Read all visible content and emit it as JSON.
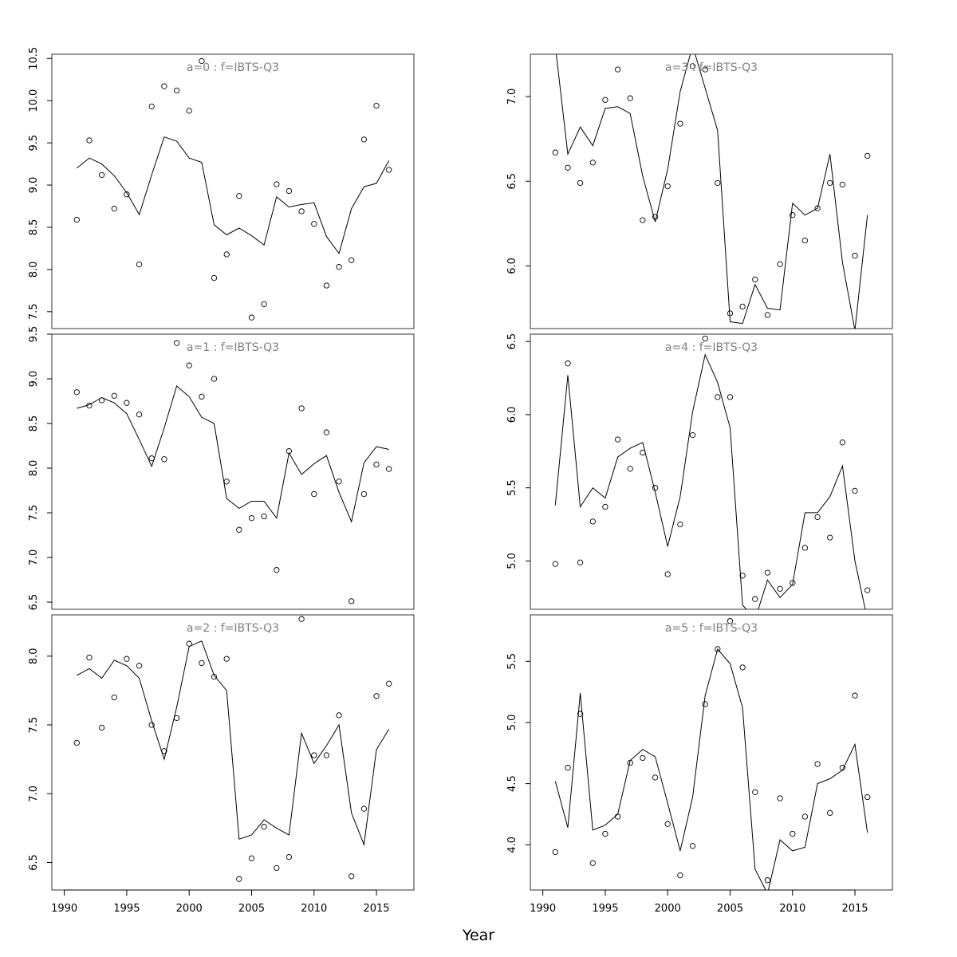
{
  "xlabel": "Year",
  "chart_data": [
    {
      "type": "scatter",
      "title": "a=0  :  f=IBTS-Q3",
      "xlim": [
        1989,
        2018
      ],
      "ylim": [
        7.3,
        10.55
      ],
      "xticks": [
        1990,
        1995,
        2000,
        2005,
        2010,
        2015
      ],
      "yticks": [
        7.5,
        8.0,
        8.5,
        9.0,
        9.5,
        10.0,
        10.5
      ],
      "show_xaxis": false,
      "series": [
        {
          "kind": "points",
          "x": [
            1991,
            1992,
            1993,
            1994,
            1995,
            1996,
            1997,
            1998,
            1999,
            2000,
            2001,
            2002,
            2003,
            2004,
            2005,
            2006,
            2007,
            2008,
            2009,
            2010,
            2011,
            2012,
            2013,
            2014,
            2015,
            2016
          ],
          "y": [
            8.59,
            9.53,
            9.12,
            8.72,
            8.89,
            8.06,
            9.93,
            10.17,
            10.12,
            9.88,
            10.47,
            7.9,
            8.18,
            8.87,
            7.43,
            7.59,
            9.01,
            8.93,
            8.69,
            8.54,
            7.81,
            8.03,
            8.11,
            9.54,
            9.94,
            9.18
          ]
        },
        {
          "kind": "line",
          "x": [
            1991,
            1992,
            1993,
            1994,
            1995,
            1996,
            1997,
            1998,
            1999,
            2000,
            2001,
            2002,
            2003,
            2004,
            2005,
            2006,
            2007,
            2008,
            2009,
            2010,
            2011,
            2012,
            2013,
            2014,
            2015,
            2016
          ],
          "y": [
            9.2,
            9.32,
            9.25,
            9.11,
            8.91,
            8.65,
            9.12,
            9.57,
            9.52,
            9.32,
            9.27,
            8.53,
            8.41,
            8.49,
            8.4,
            8.29,
            8.86,
            8.74,
            8.77,
            8.79,
            8.39,
            8.19,
            8.72,
            8.98,
            9.02,
            9.29
          ]
        }
      ]
    },
    {
      "type": "scatter",
      "title": "a=3  :  f=IBTS-Q3",
      "xlim": [
        1989,
        2018
      ],
      "ylim": [
        5.63,
        7.25
      ],
      "xticks": [
        1990,
        1995,
        2000,
        2005,
        2010,
        2015
      ],
      "yticks": [
        6.0,
        6.5,
        7.0
      ],
      "show_xaxis": false,
      "series": [
        {
          "kind": "points",
          "x": [
            1991,
            1992,
            1993,
            1994,
            1995,
            1996,
            1997,
            1998,
            1999,
            2000,
            2001,
            2002,
            2003,
            2004,
            2005,
            2006,
            2007,
            2008,
            2009,
            2010,
            2011,
            2012,
            2013,
            2014,
            2015,
            2016
          ],
          "y": [
            6.67,
            6.58,
            6.49,
            6.61,
            6.98,
            7.16,
            6.99,
            6.27,
            6.29,
            6.47,
            6.84,
            7.18,
            7.16,
            6.49,
            5.72,
            5.76,
            5.92,
            5.71,
            6.01,
            6.3,
            6.15,
            6.34,
            6.49,
            6.48,
            6.06,
            6.65
          ]
        },
        {
          "kind": "line",
          "x": [
            1991,
            1992,
            1993,
            1994,
            1995,
            1996,
            1997,
            1998,
            1999,
            2000,
            2001,
            2002,
            2003,
            2004,
            2005,
            2006,
            2007,
            2008,
            2009,
            2010,
            2011,
            2012,
            2013,
            2014,
            2015,
            2016
          ],
          "y": [
            7.3,
            6.66,
            6.82,
            6.71,
            6.93,
            6.94,
            6.9,
            6.53,
            6.26,
            6.57,
            7.03,
            7.3,
            7.05,
            6.8,
            5.67,
            5.66,
            5.89,
            5.75,
            5.74,
            6.37,
            6.3,
            6.34,
            6.66,
            6.02,
            5.62,
            6.3
          ]
        }
      ]
    },
    {
      "type": "scatter",
      "title": "a=1  :  f=IBTS-Q3",
      "xlim": [
        1989,
        2018
      ],
      "ylim": [
        6.42,
        9.5
      ],
      "xticks": [
        1990,
        1995,
        2000,
        2005,
        2010,
        2015
      ],
      "yticks": [
        6.5,
        7.0,
        7.5,
        8.0,
        8.5,
        9.0,
        9.5
      ],
      "show_xaxis": false,
      "series": [
        {
          "kind": "points",
          "x": [
            1991,
            1992,
            1993,
            1994,
            1995,
            1996,
            1997,
            1998,
            1999,
            2000,
            2001,
            2002,
            2003,
            2004,
            2005,
            2006,
            2007,
            2008,
            2009,
            2010,
            2011,
            2012,
            2013,
            2014,
            2015,
            2016
          ],
          "y": [
            8.85,
            8.7,
            8.76,
            8.81,
            8.73,
            8.6,
            8.11,
            8.1,
            9.4,
            9.15,
            8.8,
            9.0,
            7.85,
            7.31,
            7.44,
            7.46,
            6.86,
            8.19,
            8.67,
            7.71,
            8.4,
            7.85,
            6.51,
            7.71,
            8.04,
            7.99
          ]
        },
        {
          "kind": "line",
          "x": [
            1991,
            1992,
            1993,
            1994,
            1995,
            1996,
            1997,
            1998,
            1999,
            2000,
            2001,
            2002,
            2003,
            2004,
            2005,
            2006,
            2007,
            2008,
            2009,
            2010,
            2011,
            2012,
            2013,
            2014,
            2015,
            2016
          ],
          "y": [
            8.67,
            8.71,
            8.79,
            8.73,
            8.61,
            8.32,
            8.02,
            8.45,
            8.92,
            8.8,
            8.57,
            8.5,
            7.66,
            7.55,
            7.63,
            7.63,
            7.44,
            8.17,
            7.93,
            8.05,
            8.14,
            7.73,
            7.4,
            8.06,
            8.24,
            8.21
          ]
        }
      ]
    },
    {
      "type": "scatter",
      "title": "a=4  :  f=IBTS-Q3",
      "xlim": [
        1989,
        2018
      ],
      "ylim": [
        4.67,
        6.55
      ],
      "xticks": [
        1990,
        1995,
        2000,
        2005,
        2010,
        2015
      ],
      "yticks": [
        5.0,
        5.5,
        6.0,
        6.5
      ],
      "show_xaxis": false,
      "series": [
        {
          "kind": "points",
          "x": [
            1991,
            1992,
            1993,
            1994,
            1995,
            1996,
            1997,
            1998,
            1999,
            2000,
            2001,
            2002,
            2003,
            2004,
            2005,
            2006,
            2007,
            2008,
            2009,
            2010,
            2011,
            2012,
            2013,
            2014,
            2015,
            2016
          ],
          "y": [
            4.98,
            6.35,
            4.99,
            5.27,
            5.37,
            5.83,
            5.63,
            5.74,
            5.5,
            4.91,
            5.25,
            5.86,
            6.52,
            6.12,
            6.12,
            4.9,
            4.74,
            4.92,
            4.81,
            4.85,
            5.09,
            5.3,
            5.16,
            5.81,
            5.48,
            4.8
          ]
        },
        {
          "kind": "line",
          "x": [
            1991,
            1992,
            1993,
            1994,
            1995,
            1996,
            1997,
            1998,
            1999,
            2000,
            2001,
            2002,
            2003,
            2004,
            2005,
            2006,
            2007,
            2008,
            2009,
            2010,
            2011,
            2012,
            2013,
            2014,
            2015,
            2016
          ],
          "y": [
            5.38,
            6.27,
            5.37,
            5.5,
            5.43,
            5.71,
            5.77,
            5.81,
            5.47,
            5.1,
            5.44,
            6.02,
            6.41,
            6.22,
            5.91,
            4.7,
            4.6,
            4.87,
            4.75,
            4.84,
            5.33,
            5.33,
            5.44,
            5.65,
            5.0,
            4.6
          ]
        }
      ]
    },
    {
      "type": "scatter",
      "title": "a=2  :  f=IBTS-Q3",
      "xlim": [
        1989,
        2018
      ],
      "ylim": [
        6.3,
        8.3
      ],
      "xticks": [
        1990,
        1995,
        2000,
        2005,
        2010,
        2015
      ],
      "yticks": [
        6.5,
        7.0,
        7.5,
        8.0
      ],
      "show_xaxis": true,
      "series": [
        {
          "kind": "points",
          "x": [
            1991,
            1992,
            1993,
            1994,
            1995,
            1996,
            1997,
            1998,
            1999,
            2000,
            2001,
            2002,
            2003,
            2004,
            2005,
            2006,
            2007,
            2008,
            2009,
            2010,
            2011,
            2012,
            2013,
            2014,
            2015,
            2016
          ],
          "y": [
            7.37,
            7.99,
            7.48,
            7.7,
            7.98,
            7.93,
            7.5,
            7.31,
            7.55,
            8.09,
            7.95,
            7.85,
            7.98,
            6.38,
            6.53,
            6.76,
            6.46,
            6.54,
            8.27,
            7.28,
            7.28,
            7.57,
            6.4,
            6.89,
            7.71,
            7.8
          ]
        },
        {
          "kind": "line",
          "x": [
            1991,
            1992,
            1993,
            1994,
            1995,
            1996,
            1997,
            1998,
            1999,
            2000,
            2001,
            2002,
            2003,
            2004,
            2005,
            2006,
            2007,
            2008,
            2009,
            2010,
            2011,
            2012,
            2013,
            2014,
            2015,
            2016
          ],
          "y": [
            7.86,
            7.91,
            7.84,
            7.97,
            7.93,
            7.84,
            7.53,
            7.25,
            7.63,
            8.07,
            8.11,
            7.86,
            7.75,
            6.67,
            6.7,
            6.81,
            6.75,
            6.7,
            7.44,
            7.22,
            7.35,
            7.5,
            6.86,
            6.63,
            7.32,
            7.47
          ]
        }
      ]
    },
    {
      "type": "scatter",
      "title": "a=5  :  f=IBTS-Q3",
      "xlim": [
        1989,
        2018
      ],
      "ylim": [
        3.63,
        5.88
      ],
      "xticks": [
        1990,
        1995,
        2000,
        2005,
        2010,
        2015
      ],
      "yticks": [
        4.0,
        4.5,
        5.0,
        5.5
      ],
      "show_xaxis": true,
      "series": [
        {
          "kind": "points",
          "x": [
            1991,
            1992,
            1993,
            1994,
            1995,
            1996,
            1997,
            1998,
            1999,
            2000,
            2001,
            2002,
            2003,
            2004,
            2005,
            2006,
            2007,
            2008,
            2009,
            2010,
            2011,
            2012,
            2013,
            2014,
            2015,
            2016
          ],
          "y": [
            3.94,
            4.63,
            5.07,
            3.85,
            4.09,
            4.23,
            4.67,
            4.71,
            4.55,
            4.17,
            3.75,
            3.99,
            5.15,
            5.6,
            5.83,
            5.45,
            4.43,
            3.71,
            4.38,
            4.09,
            4.23,
            4.66,
            4.26,
            4.63,
            5.22,
            4.39
          ]
        },
        {
          "kind": "line",
          "x": [
            1991,
            1992,
            1993,
            1994,
            1995,
            1996,
            1997,
            1998,
            1999,
            2000,
            2001,
            2002,
            2003,
            2004,
            2005,
            2006,
            2007,
            2008,
            2009,
            2010,
            2011,
            2012,
            2013,
            2014,
            2015,
            2016
          ],
          "y": [
            4.52,
            4.14,
            5.24,
            4.12,
            4.16,
            4.25,
            4.69,
            4.78,
            4.72,
            4.34,
            3.95,
            4.39,
            5.22,
            5.6,
            5.48,
            5.12,
            3.8,
            3.6,
            4.04,
            3.95,
            3.98,
            4.5,
            4.54,
            4.61,
            4.82,
            4.1
          ]
        }
      ]
    }
  ]
}
